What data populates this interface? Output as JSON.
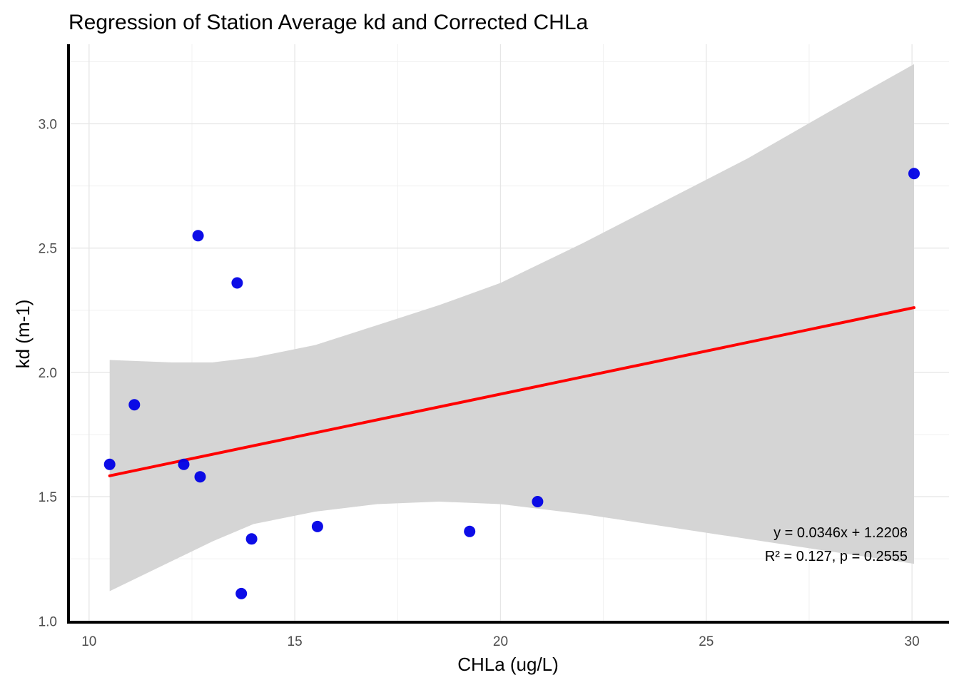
{
  "chart_data": {
    "type": "scatter",
    "title": "Regression of Station Average kd and Corrected CHLa",
    "xlabel": "CHLa (ug/L)",
    "ylabel": "kd (m-1)",
    "xlim": [
      9.5,
      30.9
    ],
    "ylim": [
      0.995,
      3.32
    ],
    "x_ticks": [
      10,
      15,
      20,
      25,
      30
    ],
    "y_ticks": [
      1.0,
      1.5,
      2.0,
      2.5,
      3.0
    ],
    "x_tick_labels": [
      "10",
      "15",
      "20",
      "25",
      "30"
    ],
    "y_tick_labels": [
      "1.0",
      "1.5",
      "2.0",
      "2.5",
      "3.0"
    ],
    "grid": true,
    "points": [
      {
        "x": 10.5,
        "y": 1.63
      },
      {
        "x": 11.1,
        "y": 1.87
      },
      {
        "x": 12.3,
        "y": 1.63
      },
      {
        "x": 12.65,
        "y": 2.55
      },
      {
        "x": 12.7,
        "y": 1.58
      },
      {
        "x": 13.6,
        "y": 2.36
      },
      {
        "x": 13.7,
        "y": 1.11
      },
      {
        "x": 13.95,
        "y": 1.33
      },
      {
        "x": 15.55,
        "y": 1.38
      },
      {
        "x": 19.25,
        "y": 1.36
      },
      {
        "x": 20.9,
        "y": 1.48
      },
      {
        "x": 30.05,
        "y": 2.8
      }
    ],
    "regression": {
      "slope": 0.0346,
      "intercept": 1.2208,
      "x_range": [
        10.5,
        30.05
      ],
      "confidence_band": {
        "x": [
          10.5,
          12.0,
          13.0,
          14.0,
          15.5,
          17.0,
          18.5,
          20.0,
          22.0,
          24.0,
          26.0,
          28.0,
          30.05
        ],
        "lower": [
          1.12,
          1.24,
          1.32,
          1.39,
          1.44,
          1.47,
          1.48,
          1.47,
          1.43,
          1.38,
          1.33,
          1.28,
          1.23
        ],
        "upper": [
          2.05,
          2.04,
          2.04,
          2.06,
          2.11,
          2.19,
          2.27,
          2.36,
          2.52,
          2.69,
          2.86,
          3.05,
          3.24
        ]
      },
      "line_color": "#ff0000",
      "band_color": "#d5d5d5"
    },
    "point_color": "#0000e6",
    "annotations": {
      "equation": "y = 0.0346x + 1.2208",
      "stats": "R² = 0.127, p = 0.2555",
      "placement": "bottom-right"
    }
  }
}
